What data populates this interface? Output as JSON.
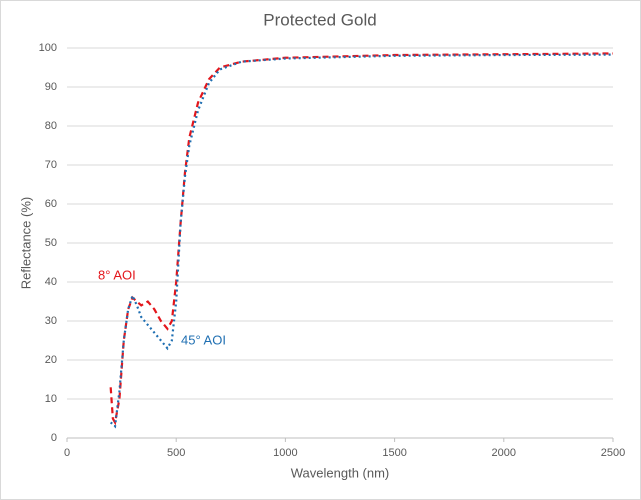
{
  "chart_data": {
    "type": "line",
    "title": "Protected Gold",
    "x_label": "Wavelength (nm)",
    "y_label": "Reflectance (%)",
    "x": [
      200,
      210,
      220,
      240,
      260,
      280,
      300,
      320,
      340,
      370,
      400,
      430,
      460,
      480,
      500,
      520,
      540,
      560,
      600,
      650,
      700,
      800,
      1000,
      1500,
      2000,
      2500
    ],
    "series": [
      {
        "name": "8° AOI",
        "color": "#e3161c",
        "dash": "6,4",
        "values": [
          13,
          5,
          4,
          10,
          25,
          33,
          36,
          35,
          34,
          35,
          33,
          30,
          28,
          30,
          40,
          55,
          68,
          77,
          86,
          92,
          95,
          96.5,
          97.5,
          98.2,
          98.4,
          98.6
        ]
      },
      {
        "name": "45° AOI",
        "color": "#1f6fb2",
        "dash": "2,3",
        "values": [
          4,
          3.5,
          3,
          12,
          25,
          33,
          36.5,
          34,
          31,
          29,
          27,
          25,
          23,
          25,
          35,
          55,
          67,
          75,
          84,
          91,
          94.5,
          96.5,
          97.3,
          98,
          98.2,
          98.3
        ]
      }
    ],
    "xlim": [
      0,
      2500
    ],
    "xticks": [
      0,
      500,
      1000,
      1500,
      2000,
      2500
    ],
    "ylim": [
      0,
      100
    ],
    "yticks": [
      0,
      10,
      20,
      30,
      40,
      50,
      60,
      70,
      80,
      90,
      100
    ],
    "grid": true
  }
}
